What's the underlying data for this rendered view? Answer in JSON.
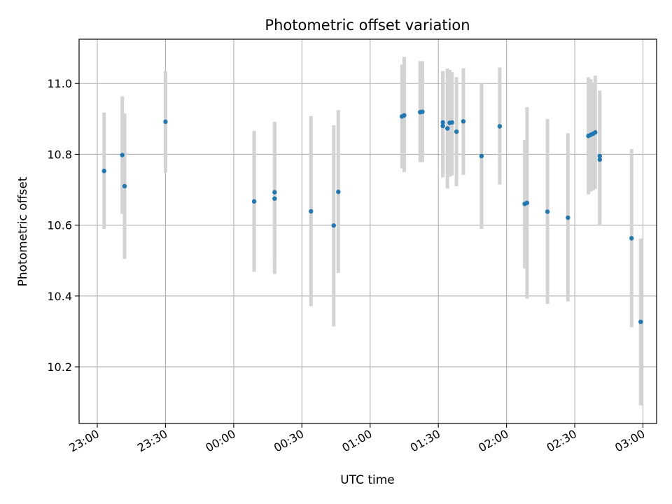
{
  "chart_data": {
    "type": "scatter",
    "title": "Photometric offset variation",
    "xlabel": "UTC time",
    "ylabel": "Photometric offset",
    "x_unit": "UTC",
    "xlim": [
      "22:52",
      "03:06"
    ],
    "ylim": [
      10.04,
      11.125
    ],
    "x_ticks": [
      "23:00",
      "23:30",
      "00:00",
      "00:30",
      "01:00",
      "01:30",
      "02:00",
      "02:30",
      "03:00"
    ],
    "y_ticks": [
      10.2,
      10.4,
      10.6,
      10.8,
      11.0
    ],
    "y_tick_labels": [
      "10.2",
      "10.4",
      "10.6",
      "10.8",
      "11.0"
    ],
    "grid": true,
    "colors": {
      "point": "#1f77b4",
      "errorbar": "#d3d3d3",
      "grid": "#b0b0b0"
    },
    "points": [
      {
        "t": "23:03",
        "y": 10.753,
        "lo": 10.59,
        "hi": 10.918
      },
      {
        "t": "23:11",
        "y": 10.798,
        "lo": 10.632,
        "hi": 10.964
      },
      {
        "t": "23:12",
        "y": 10.71,
        "lo": 10.505,
        "hi": 10.915
      },
      {
        "t": "23:30",
        "y": 10.892,
        "lo": 10.748,
        "hi": 11.035
      },
      {
        "t": "00:09",
        "y": 10.667,
        "lo": 10.468,
        "hi": 10.866
      },
      {
        "t": "00:18",
        "y": 10.693,
        "lo": 10.497,
        "hi": 10.892
      },
      {
        "t": "00:18",
        "y": 10.675,
        "lo": 10.462,
        "hi": 10.888
      },
      {
        "t": "00:34",
        "y": 10.639,
        "lo": 10.371,
        "hi": 10.908
      },
      {
        "t": "00:44",
        "y": 10.599,
        "lo": 10.314,
        "hi": 10.882
      },
      {
        "t": "00:46",
        "y": 10.694,
        "lo": 10.465,
        "hi": 10.925
      },
      {
        "t": "01:14",
        "y": 10.907,
        "lo": 10.76,
        "hi": 11.053
      },
      {
        "t": "01:15",
        "y": 10.91,
        "lo": 10.75,
        "hi": 11.075
      },
      {
        "t": "01:22",
        "y": 10.919,
        "lo": 10.778,
        "hi": 11.063
      },
      {
        "t": "01:23",
        "y": 10.92,
        "lo": 10.778,
        "hi": 11.063
      },
      {
        "t": "01:32",
        "y": 10.89,
        "lo": 10.748,
        "hi": 11.035
      },
      {
        "t": "01:32",
        "y": 10.88,
        "lo": 10.735,
        "hi": 11.032
      },
      {
        "t": "01:34",
        "y": 10.873,
        "lo": 10.703,
        "hi": 11.042
      },
      {
        "t": "01:35",
        "y": 10.889,
        "lo": 10.737,
        "hi": 11.038
      },
      {
        "t": "01:36",
        "y": 10.89,
        "lo": 10.74,
        "hi": 11.032
      },
      {
        "t": "01:38",
        "y": 10.864,
        "lo": 10.71,
        "hi": 11.018
      },
      {
        "t": "01:41",
        "y": 10.893,
        "lo": 10.742,
        "hi": 11.043
      },
      {
        "t": "01:49",
        "y": 10.795,
        "lo": 10.59,
        "hi": 11.0
      },
      {
        "t": "01:57",
        "y": 10.879,
        "lo": 10.715,
        "hi": 11.045
      },
      {
        "t": "02:08",
        "y": 10.66,
        "lo": 10.478,
        "hi": 10.84
      },
      {
        "t": "02:09",
        "y": 10.663,
        "lo": 10.393,
        "hi": 10.933
      },
      {
        "t": "02:18",
        "y": 10.638,
        "lo": 10.378,
        "hi": 10.9
      },
      {
        "t": "02:27",
        "y": 10.621,
        "lo": 10.385,
        "hi": 10.86
      },
      {
        "t": "02:36",
        "y": 10.852,
        "lo": 10.687,
        "hi": 11.017
      },
      {
        "t": "02:37",
        "y": 10.855,
        "lo": 10.695,
        "hi": 11.012
      },
      {
        "t": "02:38",
        "y": 10.858,
        "lo": 10.698,
        "hi": 11.003
      },
      {
        "t": "02:39",
        "y": 10.862,
        "lo": 10.702,
        "hi": 11.022
      },
      {
        "t": "02:41",
        "y": 10.785,
        "lo": 10.6,
        "hi": 10.97
      },
      {
        "t": "02:41",
        "y": 10.795,
        "lo": 10.61,
        "hi": 10.98
      },
      {
        "t": "02:55",
        "y": 10.563,
        "lo": 10.312,
        "hi": 10.815
      },
      {
        "t": "02:59",
        "y": 10.327,
        "lo": 10.091,
        "hi": 10.562
      }
    ]
  }
}
